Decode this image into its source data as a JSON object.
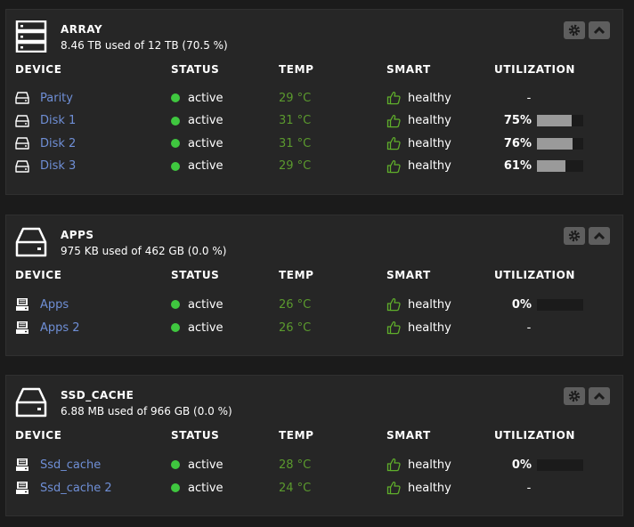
{
  "columns": {
    "device": "DEVICE",
    "status": "STATUS",
    "temp": "TEMP",
    "smart": "SMART",
    "utilization": "UTILIZATION"
  },
  "colors": {
    "link": "#6f8fd6",
    "active": "#3fc73f",
    "temp": "#5b9a2e",
    "smart_icon": "#5fae2b",
    "util_fill": "#9a9a9a"
  },
  "panels": [
    {
      "id": "array",
      "icon": "server-stack-icon",
      "title": "ARRAY",
      "subtitle": "8.46 TB used of 12 TB (70.5 %)",
      "devices": [
        {
          "name": "Parity",
          "icon": "hard-drive-icon",
          "status": "active",
          "temp": "29 °C",
          "smart": "healthy",
          "util_text": "-",
          "util_level": null
        },
        {
          "name": "Disk 1",
          "icon": "hard-drive-icon",
          "status": "active",
          "temp": "31 °C",
          "smart": "healthy",
          "util_text": "75%",
          "util_level": 0.75
        },
        {
          "name": "Disk 2",
          "icon": "hard-drive-icon",
          "status": "active",
          "temp": "31 °C",
          "smart": "healthy",
          "util_text": "76%",
          "util_level": 0.76
        },
        {
          "name": "Disk 3",
          "icon": "hard-drive-icon",
          "status": "active",
          "temp": "29 °C",
          "smart": "healthy",
          "util_text": "61%",
          "util_level": 0.61
        }
      ]
    },
    {
      "id": "apps",
      "icon": "drive-tray-icon",
      "title": "APPS",
      "subtitle": "975 KB used of 462 GB (0.0 %)",
      "devices": [
        {
          "name": "Apps",
          "icon": "ssd-icon",
          "status": "active",
          "temp": "26 °C",
          "smart": "healthy",
          "util_text": "0%",
          "util_level": 0.0
        },
        {
          "name": "Apps 2",
          "icon": "ssd-icon",
          "status": "active",
          "temp": "26 °C",
          "smart": "healthy",
          "util_text": "-",
          "util_level": null
        }
      ]
    },
    {
      "id": "ssd-cache",
      "icon": "drive-tray-icon",
      "title": "SSD_CACHE",
      "subtitle": "6.88 MB used of 966 GB (0.0 %)",
      "devices": [
        {
          "name": "Ssd_cache",
          "icon": "ssd-icon",
          "status": "active",
          "temp": "28 °C",
          "smart": "healthy",
          "util_text": "0%",
          "util_level": 0.0
        },
        {
          "name": "Ssd_cache 2",
          "icon": "ssd-icon",
          "status": "active",
          "temp": "24 °C",
          "smart": "healthy",
          "util_text": "-",
          "util_level": null
        }
      ]
    }
  ]
}
